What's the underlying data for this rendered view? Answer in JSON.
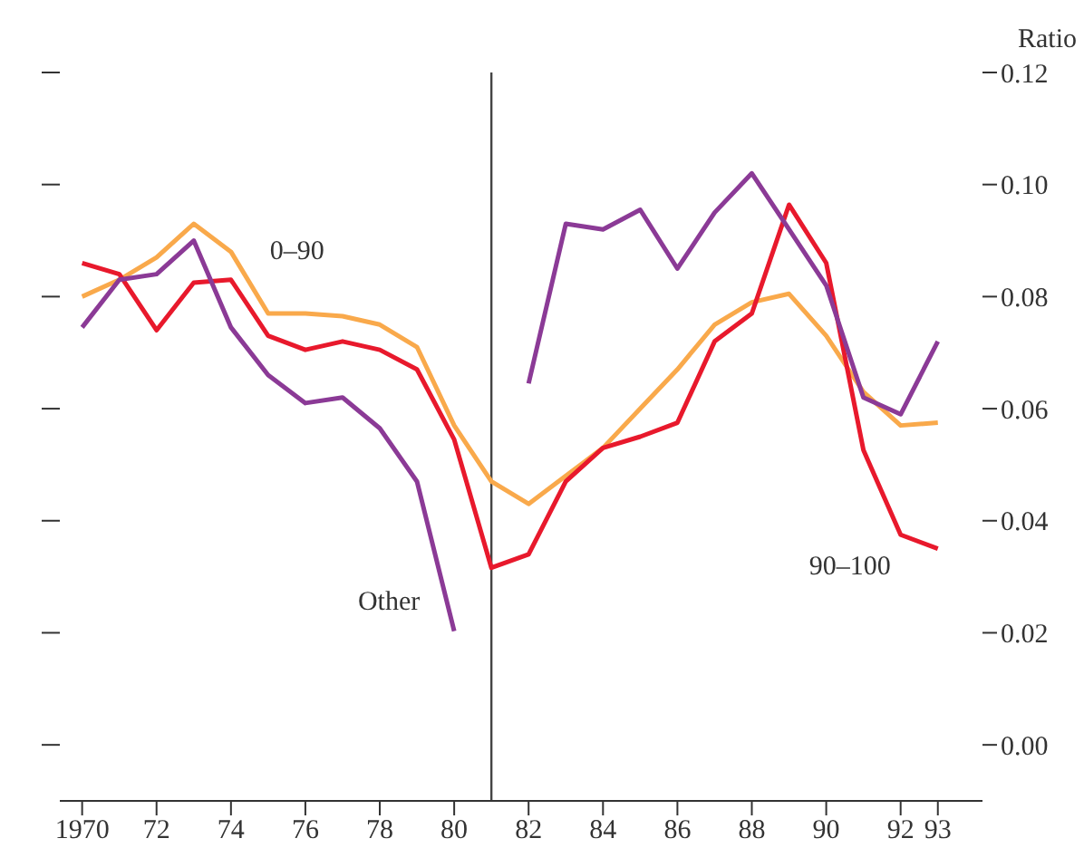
{
  "chart_data": {
    "type": "line",
    "ylabel": "Ratio",
    "x": [
      1970,
      1971,
      1972,
      1973,
      1974,
      1975,
      1976,
      1977,
      1978,
      1979,
      1980,
      1981,
      1982,
      1983,
      1984,
      1985,
      1986,
      1987,
      1988,
      1989,
      1990,
      1991,
      1992,
      1993
    ],
    "series": [
      {
        "name": "0–90",
        "color": "#f9a94b",
        "values": [
          0.08,
          0.083,
          0.087,
          0.093,
          0.088,
          0.077,
          0.077,
          0.0765,
          0.075,
          0.071,
          0.057,
          0.047,
          0.043,
          0.048,
          0.053,
          0.06,
          0.067,
          0.075,
          0.079,
          0.0805,
          0.073,
          0.063,
          0.057,
          0.0575
        ]
      },
      {
        "name": "90–100",
        "color": "#e8192c",
        "values": [
          0.086,
          0.084,
          0.074,
          0.0825,
          0.083,
          0.073,
          0.0705,
          0.072,
          0.0705,
          0.067,
          0.0545,
          0.0316,
          0.034,
          0.047,
          0.053,
          0.055,
          0.0575,
          0.072,
          0.077,
          0.0964,
          0.086,
          0.0526,
          0.0375,
          0.035
        ]
      },
      {
        "name": "Other",
        "color": "#8b3a96",
        "values": [
          0.0745,
          0.083,
          0.084,
          0.09,
          0.0745,
          0.066,
          0.061,
          0.062,
          0.0565,
          0.047,
          0.0203,
          null,
          0.0645,
          0.093,
          0.092,
          0.0955,
          0.085,
          0.095,
          0.102,
          0.092,
          0.082,
          0.062,
          0.059,
          0.072
        ]
      }
    ],
    "xlim": [
      1969.4,
      1994.2
    ],
    "xticks": [
      {
        "value": 1970,
        "label": "1970"
      },
      {
        "value": 1972,
        "label": "72"
      },
      {
        "value": 1974,
        "label": "74"
      },
      {
        "value": 1976,
        "label": "76"
      },
      {
        "value": 1978,
        "label": "78"
      },
      {
        "value": 1980,
        "label": "80"
      },
      {
        "value": 1982,
        "label": "82"
      },
      {
        "value": 1984,
        "label": "84"
      },
      {
        "value": 1986,
        "label": "86"
      },
      {
        "value": 1988,
        "label": "88"
      },
      {
        "value": 1990,
        "label": "90"
      },
      {
        "value": 1992,
        "label": "92"
      },
      {
        "value": 1993,
        "label": "93"
      }
    ],
    "ylim": [
      -0.01,
      0.12
    ],
    "yticks": [
      {
        "value": 0,
        "label": "0.00"
      },
      {
        "value": 0.02,
        "label": "0.02"
      },
      {
        "value": 0.04,
        "label": "0.04"
      },
      {
        "value": 0.06,
        "label": "0.06"
      },
      {
        "value": 0.08,
        "label": "0.08"
      },
      {
        "value": 0.1,
        "label": "0.10"
      },
      {
        "value": 0.12,
        "label": "0.12"
      }
    ],
    "ref_lines": [
      {
        "axis": "x",
        "value": 1981,
        "color": "#444444"
      }
    ],
    "grid": false,
    "legend": false,
    "marker": "none",
    "line_style": "solid"
  }
}
